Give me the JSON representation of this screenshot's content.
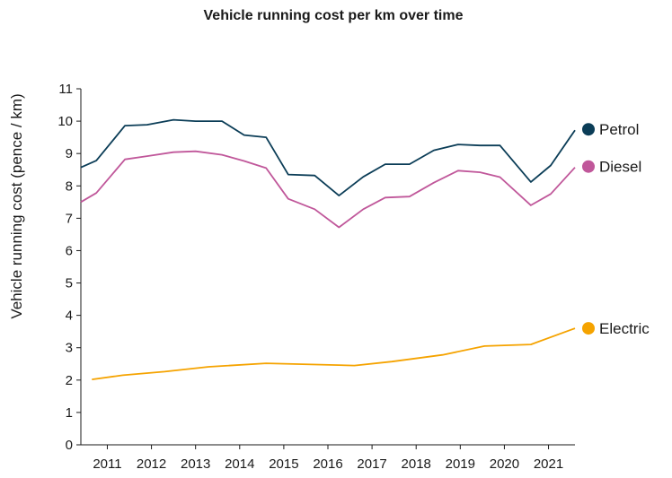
{
  "chart_data": {
    "type": "line",
    "title": "Vehicle running cost per km over time",
    "xlabel": "",
    "ylabel": "Vehicle running cost (pence / km)",
    "xlim": [
      2010.4,
      2021.6
    ],
    "ylim": [
      0,
      11
    ],
    "x_ticks": [
      "2011",
      "2012",
      "2013",
      "2014",
      "2015",
      "2016",
      "2017",
      "2018",
      "2019",
      "2020",
      "2021"
    ],
    "y_ticks": [
      "0",
      "1",
      "2",
      "3",
      "4",
      "5",
      "6",
      "7",
      "8",
      "9",
      "10",
      "11"
    ],
    "grid": false,
    "legend_placement": "right end of lines",
    "series": [
      {
        "name": "Petrol",
        "color": "#0b3d57",
        "x": [
          2010.4,
          2010.75,
          2011.4,
          2011.9,
          2012.5,
          2013.0,
          2013.6,
          2014.1,
          2014.6,
          2015.1,
          2015.7,
          2016.25,
          2016.8,
          2017.3,
          2017.85,
          2018.4,
          2018.95,
          2019.45,
          2019.9,
          2020.6,
          2021.05,
          2021.6
        ],
        "values": [
          8.57,
          8.78,
          9.86,
          9.89,
          10.04,
          10.0,
          10.0,
          9.57,
          9.5,
          8.35,
          8.32,
          7.7,
          8.28,
          8.67,
          8.67,
          9.1,
          9.28,
          9.25,
          9.25,
          8.12,
          8.63,
          9.72
        ]
      },
      {
        "name": "Diesel",
        "color": "#c0579a",
        "x": [
          2010.4,
          2010.75,
          2011.4,
          2011.9,
          2012.5,
          2013.0,
          2013.6,
          2014.1,
          2014.6,
          2015.1,
          2015.7,
          2016.25,
          2016.8,
          2017.3,
          2017.85,
          2018.4,
          2018.95,
          2019.45,
          2019.9,
          2020.6,
          2021.05,
          2021.6
        ],
        "values": [
          7.5,
          7.78,
          8.82,
          8.92,
          9.04,
          9.07,
          8.96,
          8.77,
          8.55,
          7.6,
          7.28,
          6.72,
          7.28,
          7.64,
          7.67,
          8.1,
          8.47,
          8.42,
          8.27,
          7.4,
          7.75,
          8.57
        ]
      },
      {
        "name": "Electric",
        "color": "#f5a300",
        "x": [
          2010.65,
          2011.35,
          2012.3,
          2013.3,
          2014.6,
          2016.6,
          2017.45,
          2018.6,
          2019.55,
          2020.6,
          2021.6
        ],
        "values": [
          2.02,
          2.15,
          2.26,
          2.41,
          2.52,
          2.45,
          2.57,
          2.78,
          3.05,
          3.1,
          3.6
        ]
      }
    ]
  }
}
